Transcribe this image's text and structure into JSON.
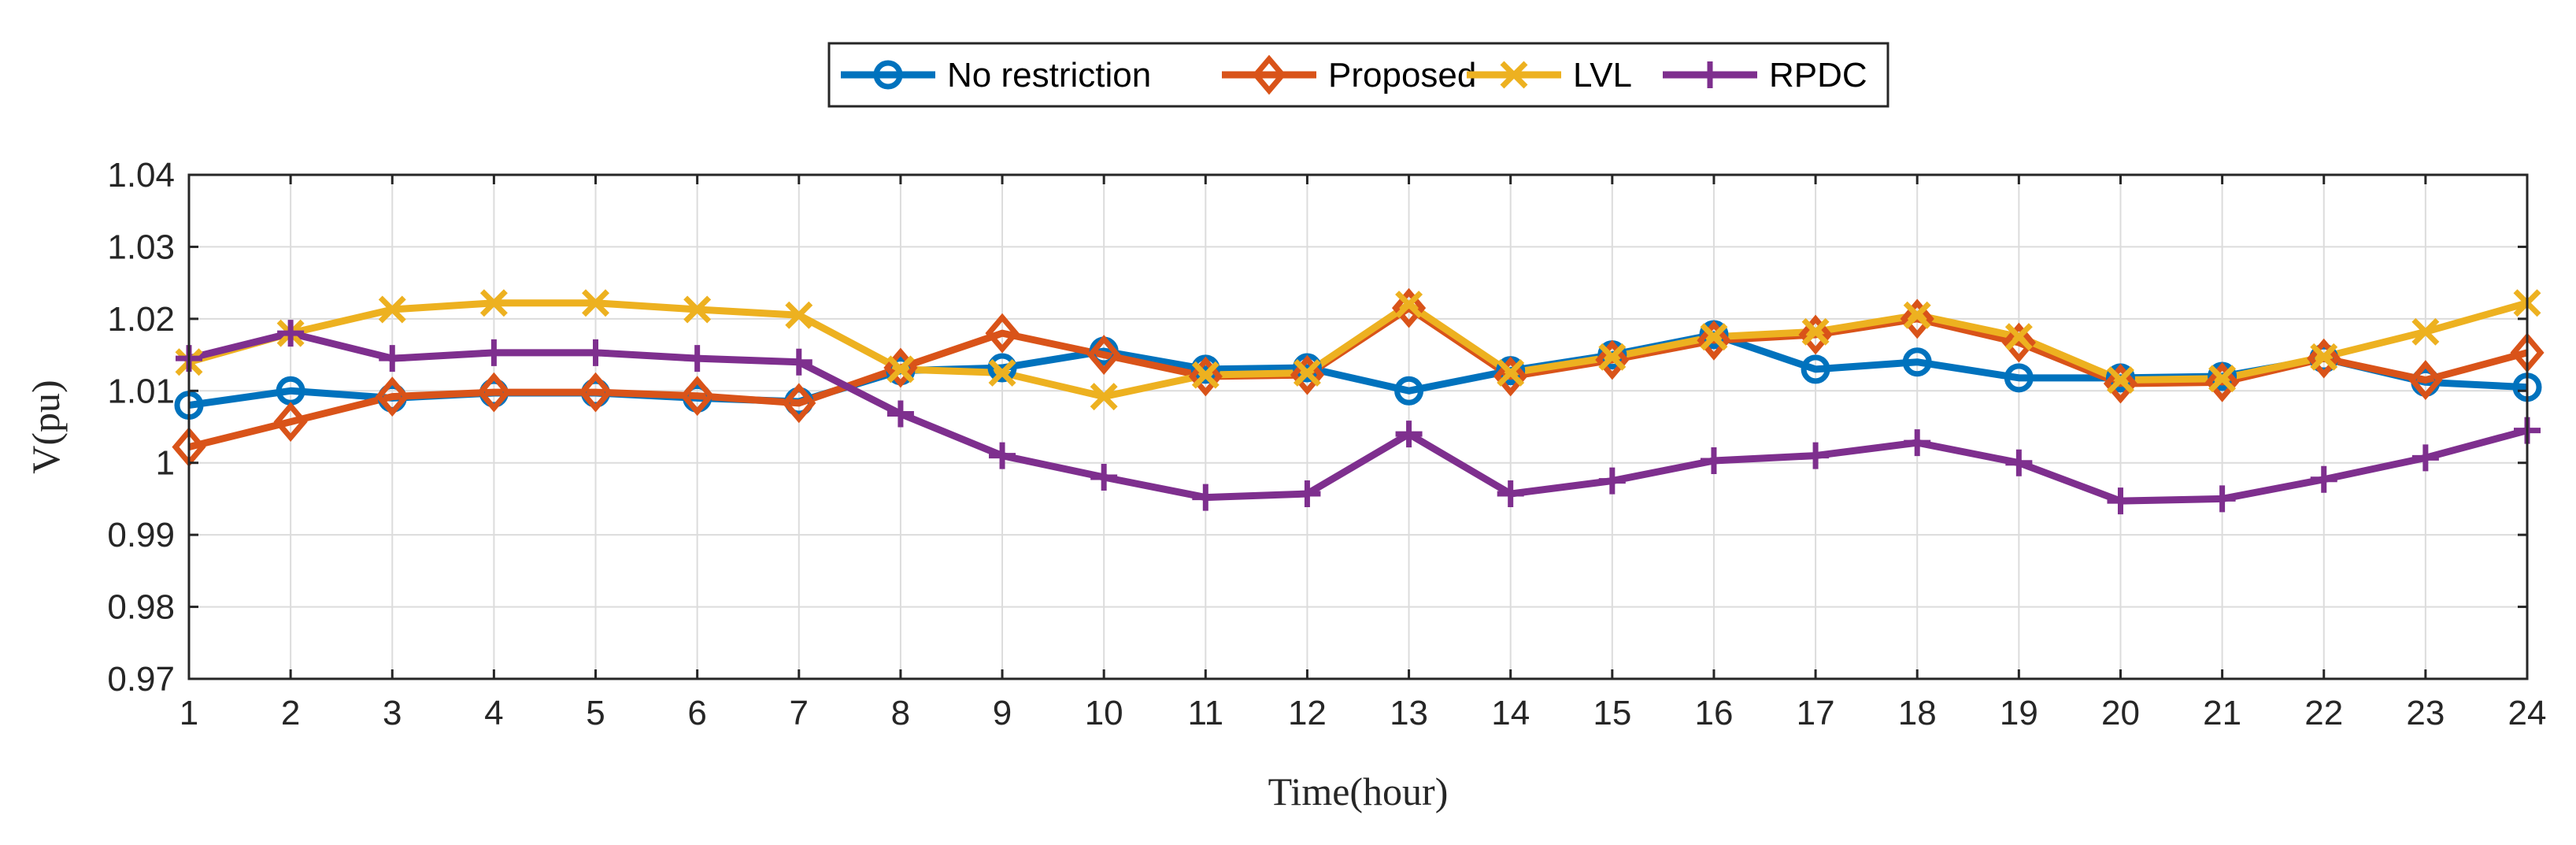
{
  "chart_data": {
    "type": "line",
    "title": "",
    "xlabel": "Time(hour)",
    "ylabel": "V(pu)",
    "x": [
      1,
      2,
      3,
      4,
      5,
      6,
      7,
      8,
      9,
      10,
      11,
      12,
      13,
      14,
      15,
      16,
      17,
      18,
      19,
      20,
      21,
      22,
      23,
      24
    ],
    "xlim": [
      1,
      24
    ],
    "ylim": [
      0.97,
      1.04
    ],
    "xticks": [
      "1",
      "2",
      "3",
      "4",
      "5",
      "6",
      "7",
      "8",
      "9",
      "10",
      "11",
      "12",
      "13",
      "14",
      "15",
      "16",
      "17",
      "18",
      "19",
      "20",
      "21",
      "22",
      "23",
      "24"
    ],
    "yticks": [
      0.97,
      0.98,
      0.99,
      1.0,
      1.01,
      1.02,
      1.03,
      1.04
    ],
    "ytick_labels": [
      "0.97",
      "0.98",
      "0.99",
      "1",
      "1.01",
      "1.02",
      "1.03",
      "1.04"
    ],
    "grid": true,
    "legend_position": "top-center",
    "series": [
      {
        "name": "No restriction",
        "color": "#0072BD",
        "marker": "circle",
        "values": [
          1.008,
          1.01,
          1.009,
          1.0097,
          1.0097,
          1.009,
          1.0085,
          1.0128,
          1.0132,
          1.0155,
          1.013,
          1.0132,
          1.01,
          1.0128,
          1.015,
          1.0178,
          1.013,
          1.014,
          1.0118,
          1.0118,
          1.012,
          1.0145,
          1.0112,
          1.0105
        ]
      },
      {
        "name": "Proposed",
        "color": "#D95319",
        "marker": "diamond",
        "values": [
          1.0022,
          1.0057,
          1.0092,
          1.0098,
          1.0098,
          1.0093,
          1.0083,
          1.0132,
          1.018,
          1.015,
          1.012,
          1.0122,
          1.0215,
          1.012,
          1.0143,
          1.017,
          1.0178,
          1.02,
          1.0167,
          1.011,
          1.0112,
          1.0145,
          1.0115,
          1.0153
        ]
      },
      {
        "name": "LVL",
        "color": "#EDB120",
        "marker": "x",
        "values": [
          1.014,
          1.018,
          1.0213,
          1.0222,
          1.0222,
          1.0213,
          1.0205,
          1.013,
          1.0125,
          1.0092,
          1.0122,
          1.0125,
          1.022,
          1.0125,
          1.0147,
          1.0175,
          1.0182,
          1.0205,
          1.0175,
          1.0115,
          1.0117,
          1.0147,
          1.0182,
          1.0222
        ]
      },
      {
        "name": "RPDC",
        "color": "#7E2F8E",
        "marker": "plus",
        "values": [
          1.0145,
          1.018,
          1.0145,
          1.0153,
          1.0153,
          1.0145,
          1.014,
          1.0068,
          1.001,
          0.998,
          0.9952,
          0.9957,
          1.004,
          0.9957,
          0.9975,
          1.0003,
          1.001,
          1.0028,
          1.0,
          0.9947,
          0.995,
          0.9977,
          1.0007,
          1.0045
        ]
      }
    ]
  }
}
